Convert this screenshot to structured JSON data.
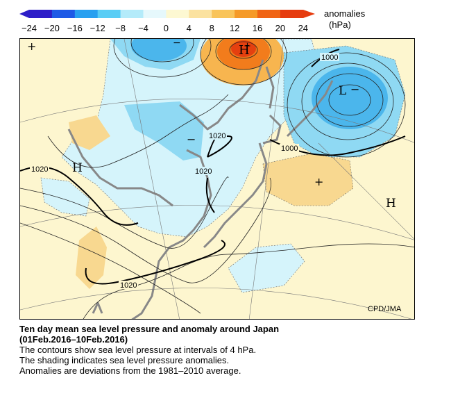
{
  "colorbar": {
    "tick_labels": [
      "−24",
      "−20",
      "−16",
      "−12",
      "−8",
      "−4",
      "0",
      "4",
      "8",
      "12",
      "16",
      "20",
      "24"
    ],
    "title_line1": "anomalies",
    "title_line2": "(hPa)",
    "colors": [
      "#2d1ec8",
      "#1e5ae6",
      "#28a0f0",
      "#5acdf5",
      "#b4ebfa",
      "#e6f8fc",
      "#fdf8d2",
      "#fbe2a0",
      "#f9c45a",
      "#f59a28",
      "#f06414",
      "#e63c0f"
    ]
  },
  "map": {
    "pressure_labels": [
      "1000",
      "1000",
      "1020",
      "1020",
      "1020",
      "1020"
    ],
    "center_symbols": {
      "high": "H",
      "low": "L",
      "plus": "+",
      "minus": "−"
    },
    "credit": "CPD/JMA",
    "colors": {
      "land_gray": "#888888",
      "neutral": "#fdf6cf",
      "pos_light": "#f8d890",
      "neg_light": "#d5f4fb",
      "neg_mid": "#8fd9f3",
      "neg_strong": "#4bb6ec",
      "pos_mid": "#f7b54f",
      "pos_strong": "#f27c1c",
      "pos_max": "#e5400f"
    }
  },
  "caption": {
    "title": "Ten day mean sea level pressure and anomaly around Japan",
    "period": "(01Feb.2016–10Feb.2016)",
    "line1": "The contours show sea level pressure at intervals of 4 hPa.",
    "line2": "The shading indicates sea level pressure anomalies.",
    "line3": "Anomalies are deviations from the 1981–2010 average."
  }
}
